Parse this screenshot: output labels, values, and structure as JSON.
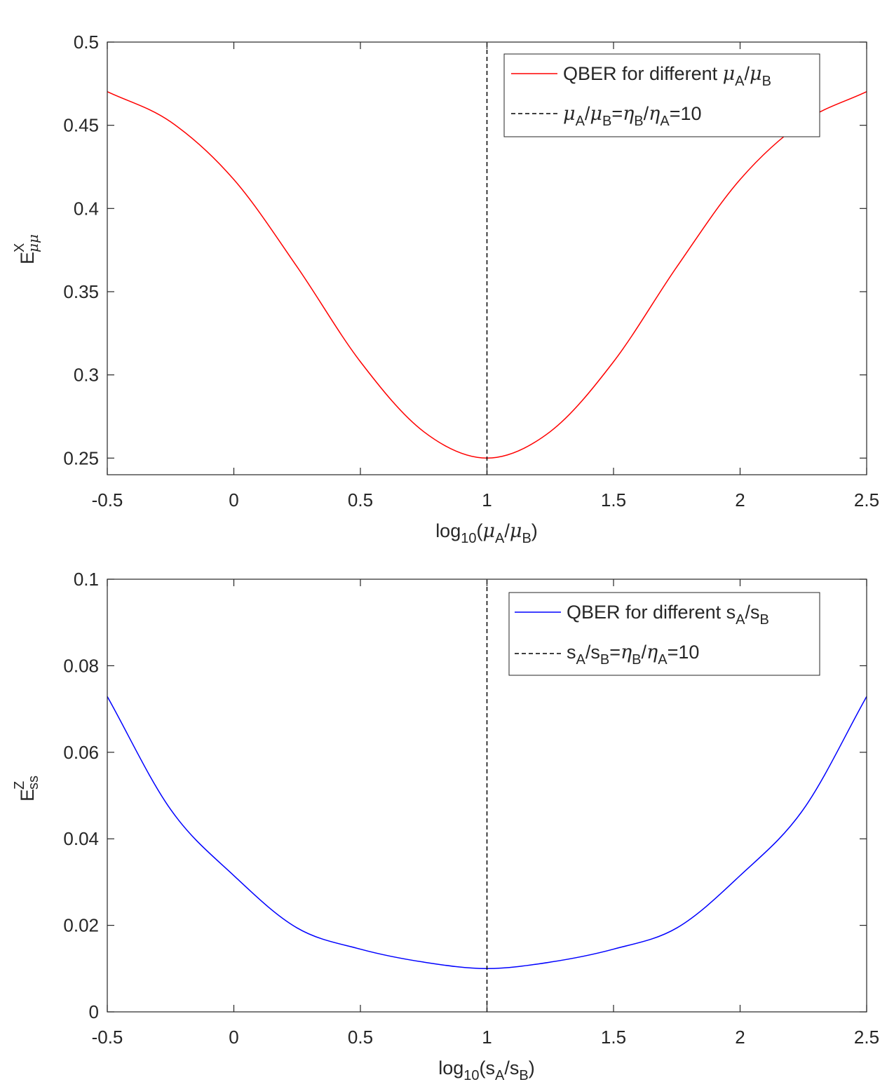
{
  "colors": {
    "red": "#ff0000",
    "blue": "#0000ff",
    "black": "#000000",
    "axis": "#262626"
  },
  "chart_data": [
    {
      "type": "line",
      "xlim": [
        -0.5,
        2.5
      ],
      "ylim": [
        0.24,
        0.5
      ],
      "xticks": [
        -0.5,
        0,
        0.5,
        1,
        1.5,
        2,
        2.5
      ],
      "xtick_labels": [
        "-0.5",
        "0",
        "0.5",
        "1",
        "1.5",
        "2",
        "2.5"
      ],
      "yticks": [
        0.25,
        0.3,
        0.35,
        0.4,
        0.45,
        0.5
      ],
      "ytick_labels": [
        "0.25",
        "0.3",
        "0.35",
        "0.4",
        "0.45",
        "0.5"
      ],
      "xlabel": {
        "main": "log",
        "sub": "10",
        "rest": "(μA/μB)"
      },
      "ylabel": {
        "main": "E",
        "sup": "X",
        "sub": "μμ"
      },
      "grid": false,
      "legend_position": "top-right",
      "series": [
        {
          "name": "QBER for different μA/μB",
          "color": "#ff0000",
          "style": "solid",
          "x": [
            -0.5,
            -0.25,
            0,
            0.25,
            0.5,
            0.75,
            1,
            1.25,
            1.5,
            1.75,
            2,
            2.25,
            2.5
          ],
          "values": [
            0.4702,
            0.4521,
            0.4174,
            0.3649,
            0.3079,
            0.2659,
            0.25,
            0.2659,
            0.3079,
            0.3649,
            0.4174,
            0.4521,
            0.4702
          ]
        },
        {
          "name": "μA/μB=ηB/ηA=10",
          "color": "#000000",
          "style": "dashed",
          "x": [
            1,
            1
          ],
          "values": [
            0.24,
            0.5
          ]
        }
      ],
      "legend_entries": [
        {
          "text": "QBER for different μA/μB"
        },
        {
          "text": "μA/μB=ηB/ηA=10"
        }
      ]
    },
    {
      "type": "line",
      "xlim": [
        -0.5,
        2.5
      ],
      "ylim": [
        0,
        0.1
      ],
      "xticks": [
        -0.5,
        0,
        0.5,
        1,
        1.5,
        2,
        2.5
      ],
      "xtick_labels": [
        "-0.5",
        "0",
        "0.5",
        "1",
        "1.5",
        "2",
        "2.5"
      ],
      "yticks": [
        0,
        0.02,
        0.04,
        0.06,
        0.08,
        0.1
      ],
      "ytick_labels": [
        "0",
        "0.02",
        "0.04",
        "0.06",
        "0.08",
        "0.1"
      ],
      "xlabel": {
        "main": "log",
        "sub": "10",
        "rest": "(sA/sB)"
      },
      "ylabel": {
        "main": "E",
        "sup": "Z",
        "sub": "ss"
      },
      "grid": false,
      "legend_position": "top-right",
      "series": [
        {
          "name": "QBER for different sA/sB",
          "color": "#0000ff",
          "style": "solid",
          "x": [
            -0.5,
            -0.25,
            0,
            0.25,
            0.5,
            0.75,
            1,
            1.25,
            1.5,
            1.75,
            2,
            2.25,
            2.5
          ],
          "values": [
            0.0729,
            0.0468,
            0.0315,
            0.0194,
            0.0145,
            0.0115,
            0.01,
            0.0115,
            0.0145,
            0.0194,
            0.0315,
            0.0468,
            0.0729
          ]
        },
        {
          "name": "sA/sB=ηB/ηA=10",
          "color": "#000000",
          "style": "dashed",
          "x": [
            1,
            1
          ],
          "values": [
            0,
            0.1
          ]
        }
      ],
      "legend_entries": [
        {
          "text": "QBER for different sA/sB"
        },
        {
          "text": "sA/sB=ηB/ηA=10"
        }
      ]
    }
  ]
}
